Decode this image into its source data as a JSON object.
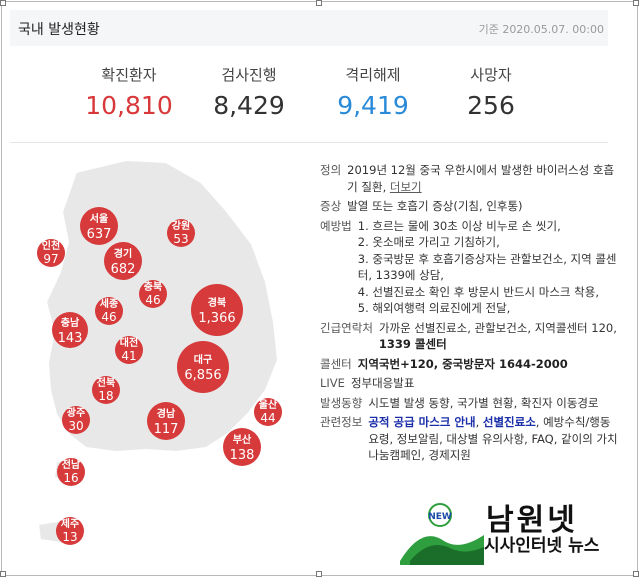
{
  "header": {
    "title": "국내 발생현황",
    "date": "기준 2020.05.07. 00:00"
  },
  "stats": [
    {
      "label": "확진환자",
      "value": "10,810",
      "color": "#d8383a"
    },
    {
      "label": "검사진행",
      "value": "8,429",
      "color": "#333333"
    },
    {
      "label": "격리해제",
      "value": "9,419",
      "color": "#2a8ad8"
    },
    {
      "label": "사망자",
      "value": "256",
      "color": "#333333"
    }
  ],
  "regions": [
    {
      "name": "서울",
      "count": "637"
    },
    {
      "name": "강원",
      "count": "53"
    },
    {
      "name": "인천",
      "count": "97"
    },
    {
      "name": "경기",
      "count": "682"
    },
    {
      "name": "충북",
      "count": "46"
    },
    {
      "name": "세종",
      "count": "46"
    },
    {
      "name": "경북",
      "count": "1,366"
    },
    {
      "name": "충남",
      "count": "143"
    },
    {
      "name": "대전",
      "count": "41"
    },
    {
      "name": "대구",
      "count": "6,856"
    },
    {
      "name": "전북",
      "count": "18"
    },
    {
      "name": "울산",
      "count": "44"
    },
    {
      "name": "광주",
      "count": "30"
    },
    {
      "name": "경남",
      "count": "117"
    },
    {
      "name": "부산",
      "count": "138"
    },
    {
      "name": "전남",
      "count": "16"
    },
    {
      "name": "제주",
      "count": "13"
    }
  ],
  "bubble_color": "#d63a3a",
  "info": {
    "definition_label": "정의",
    "definition_text": "2019년 12월 중국 우한시에서 발생한 바이러스성 호흡기 질환,",
    "more_link": "더보기",
    "symptom_label": "증상",
    "symptom_text": "발열 또는 호흡기 증상(기침, 인후통)",
    "prevention_label": "예방법",
    "prevention_items": [
      "1. 흐르는 물에 30초 이상 비누로 손 씻기,",
      "2. 옷소매로 가리고 기침하기,",
      "3. 중국방문 후 호흡기증상자는 관할보건소, 지역 콜센터, 1339에 상담,",
      "4. 선별진료소 확인 후 방문시 반드시 마스크 착용,",
      "5. 해외여행력 의료진에게 전달,"
    ],
    "emergency_label": "긴급연락처",
    "emergency_text": "가까운 선별진료소, 관할보건소, 지역콜센터 120,",
    "emergency_strong": "1339 콜센터",
    "callcenter_label": "콜센터",
    "callcenter_text": "지역국번+120, 중국방문자 1644-2000",
    "live_label": "LIVE",
    "live_text": "정부대응발표",
    "trend_label": "발생동향",
    "trend_text": "시도별 발생 동향, 국가별 현황, 확진자 이동경로",
    "related_label": "관련정보",
    "related_strong1": "공적 공급 마스크 안내",
    "related_sep": ",",
    "related_strong2": "선별진료소",
    "related_text": ", 예방수칙/행동요령, 정보알림, 대상별 유의사항, FAQ, 같이의 가치 나눔캠페인, 경제지원"
  },
  "watermark": {
    "badge": "NEW",
    "title": "남원넷",
    "subtitle": "시사인터넷 뉴스"
  }
}
